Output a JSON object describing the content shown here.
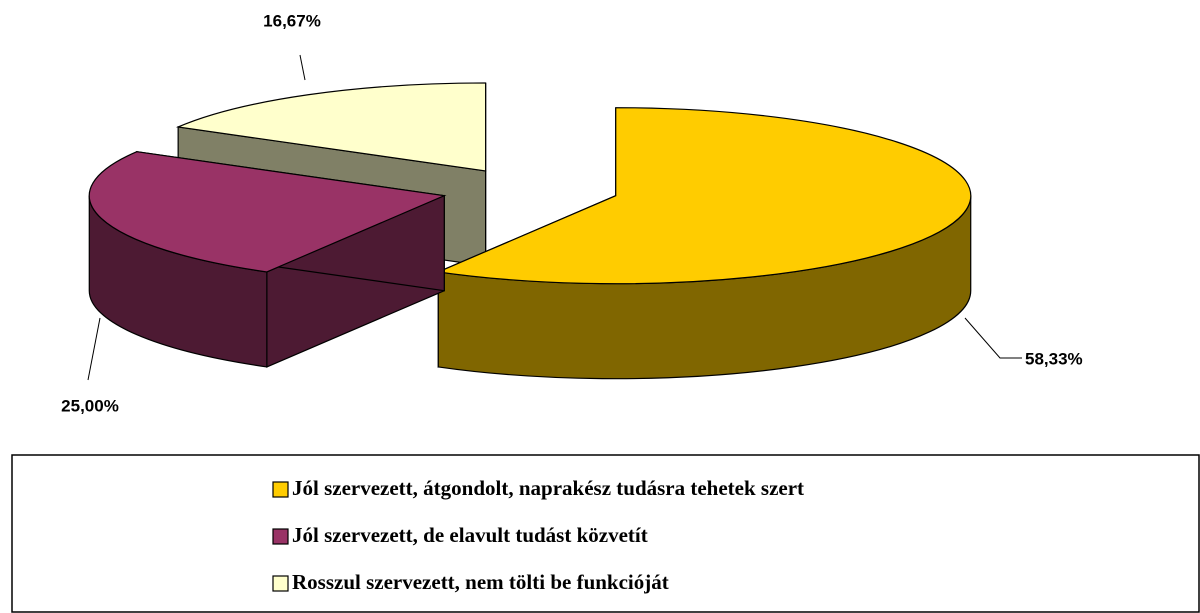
{
  "chart_data": {
    "type": "pie",
    "categories": [
      "Jól szervezett, átgondolt, naprakész tudásra tehetek szert",
      "Jól szervezett, de elavult tudást közvetít",
      "Rosszul szervezett, nem tölti be funkcióját"
    ],
    "values": [
      58.33,
      25.0,
      16.67
    ],
    "value_labels": [
      "58,33%",
      "25,00%",
      "16,67%"
    ],
    "colors": [
      "#FFCC00",
      "#993366",
      "#FFFFCC"
    ],
    "legend": "bottom"
  }
}
